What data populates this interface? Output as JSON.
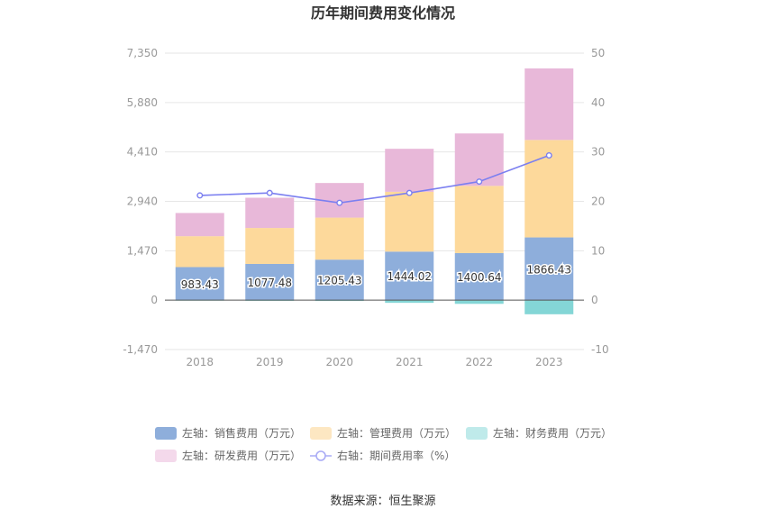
{
  "chart_data": {
    "type": "bar",
    "title": "历年期间费用变化情况",
    "categories": [
      "2018",
      "2019",
      "2020",
      "2021",
      "2022",
      "2023"
    ],
    "left_axis": {
      "ticks": [
        "7,350",
        "5,880",
        "4,410",
        "2,940",
        "1,470",
        "0",
        "-1,470"
      ],
      "ylim": [
        -1470,
        7350
      ]
    },
    "right_axis": {
      "ticks": [
        "50",
        "40",
        "30",
        "20",
        "10",
        "0",
        "-10"
      ],
      "ylim": [
        -10,
        50
      ]
    },
    "series": [
      {
        "name": "左轴：销售费用（万元）",
        "type": "bar",
        "axis": "left",
        "color": "#8eaedb",
        "values": [
          983.43,
          1077.48,
          1205.43,
          1444.02,
          1400.64,
          1866.43
        ],
        "labels": [
          "983.43",
          "1077.48",
          "1205.43",
          "1444.02",
          "1400.64",
          "1866.43"
        ]
      },
      {
        "name": "左轴：管理费用（万元）",
        "type": "bar",
        "axis": "left",
        "color": "#fdd99b",
        "values": [
          920,
          1070,
          1250,
          1780,
          2000,
          2900
        ]
      },
      {
        "name": "左轴：财务费用（万元）",
        "type": "bar",
        "axis": "left",
        "color": "#84d6d6",
        "values": [
          -15,
          -20,
          -25,
          -80,
          -110,
          -420
        ]
      },
      {
        "name": "左轴：研发费用（万元）",
        "type": "bar",
        "axis": "left",
        "color": "#e8b8d9",
        "values": [
          690,
          900,
          1030,
          1280,
          1560,
          2130
        ]
      },
      {
        "name": "右轴：期间费用率（%）",
        "type": "line",
        "axis": "right",
        "color": "#7b7ff0",
        "values": [
          21.2,
          21.7,
          19.7,
          21.7,
          24.0,
          29.3
        ]
      }
    ],
    "legend_position": "bottom"
  },
  "legend": {
    "items": [
      {
        "label": "左轴：销售费用（万元）",
        "color": "#8eaedb",
        "kind": "rect"
      },
      {
        "label": "左轴：管理费用（万元）",
        "color": "#fde7c2",
        "kind": "rect"
      },
      {
        "label": "左轴：财务费用（万元）",
        "color": "#bfeaea",
        "kind": "rect"
      },
      {
        "label": "左轴：研发费用（万元）",
        "color": "#f4d9eb",
        "kind": "rect"
      },
      {
        "label": "右轴：期间费用率（%）",
        "color": "#a9abf5",
        "kind": "line"
      }
    ]
  },
  "source": "数据来源：恒生聚源"
}
